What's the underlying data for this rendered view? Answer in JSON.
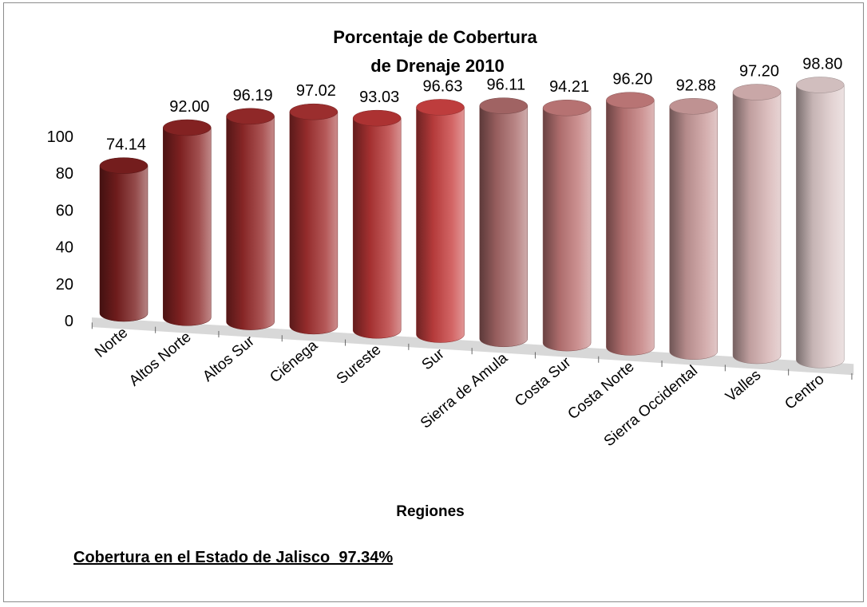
{
  "chart_data": {
    "type": "bar",
    "title_lines": [
      "Porcentaje de Cobertura",
      "de Drenaje 2010"
    ],
    "xlabel": "Regiones",
    "ylabel": "",
    "ylim": [
      0,
      100
    ],
    "yticks": [
      "0",
      "20",
      "40",
      "60",
      "80",
      "100"
    ],
    "categories": [
      "Norte",
      "Altos Norte",
      "Altos Sur",
      "Ciénega",
      "Sureste",
      "Sur",
      "Sierra de Amula",
      "Costa Sur",
      "Costa Norte",
      "Sierra Occidental",
      "Valles",
      "Centro"
    ],
    "values": [
      74.14,
      92.0,
      96.19,
      97.02,
      93.03,
      96.63,
      96.11,
      94.21,
      96.2,
      92.88,
      97.2,
      98.8
    ],
    "value_labels": [
      "74.14",
      "92.00",
      "96.19",
      "97.02",
      "93.03",
      "96.63",
      "96.11",
      "94.21",
      "96.20",
      "92.88",
      "97.20",
      "98.80"
    ],
    "bar_colors": [
      "#7a1f1f",
      "#8a2424",
      "#962a2a",
      "#a33030",
      "#b53535",
      "#c84040",
      "#a86868",
      "#c07878",
      "#c27a7a",
      "#c99a9a",
      "#d4b0b0",
      "#dcc8c8"
    ],
    "style": "3d-cylinder",
    "grid": false,
    "legend": "none"
  },
  "footer": {
    "note": "Cobertura en el Estado de Jalisco  97.34%"
  }
}
